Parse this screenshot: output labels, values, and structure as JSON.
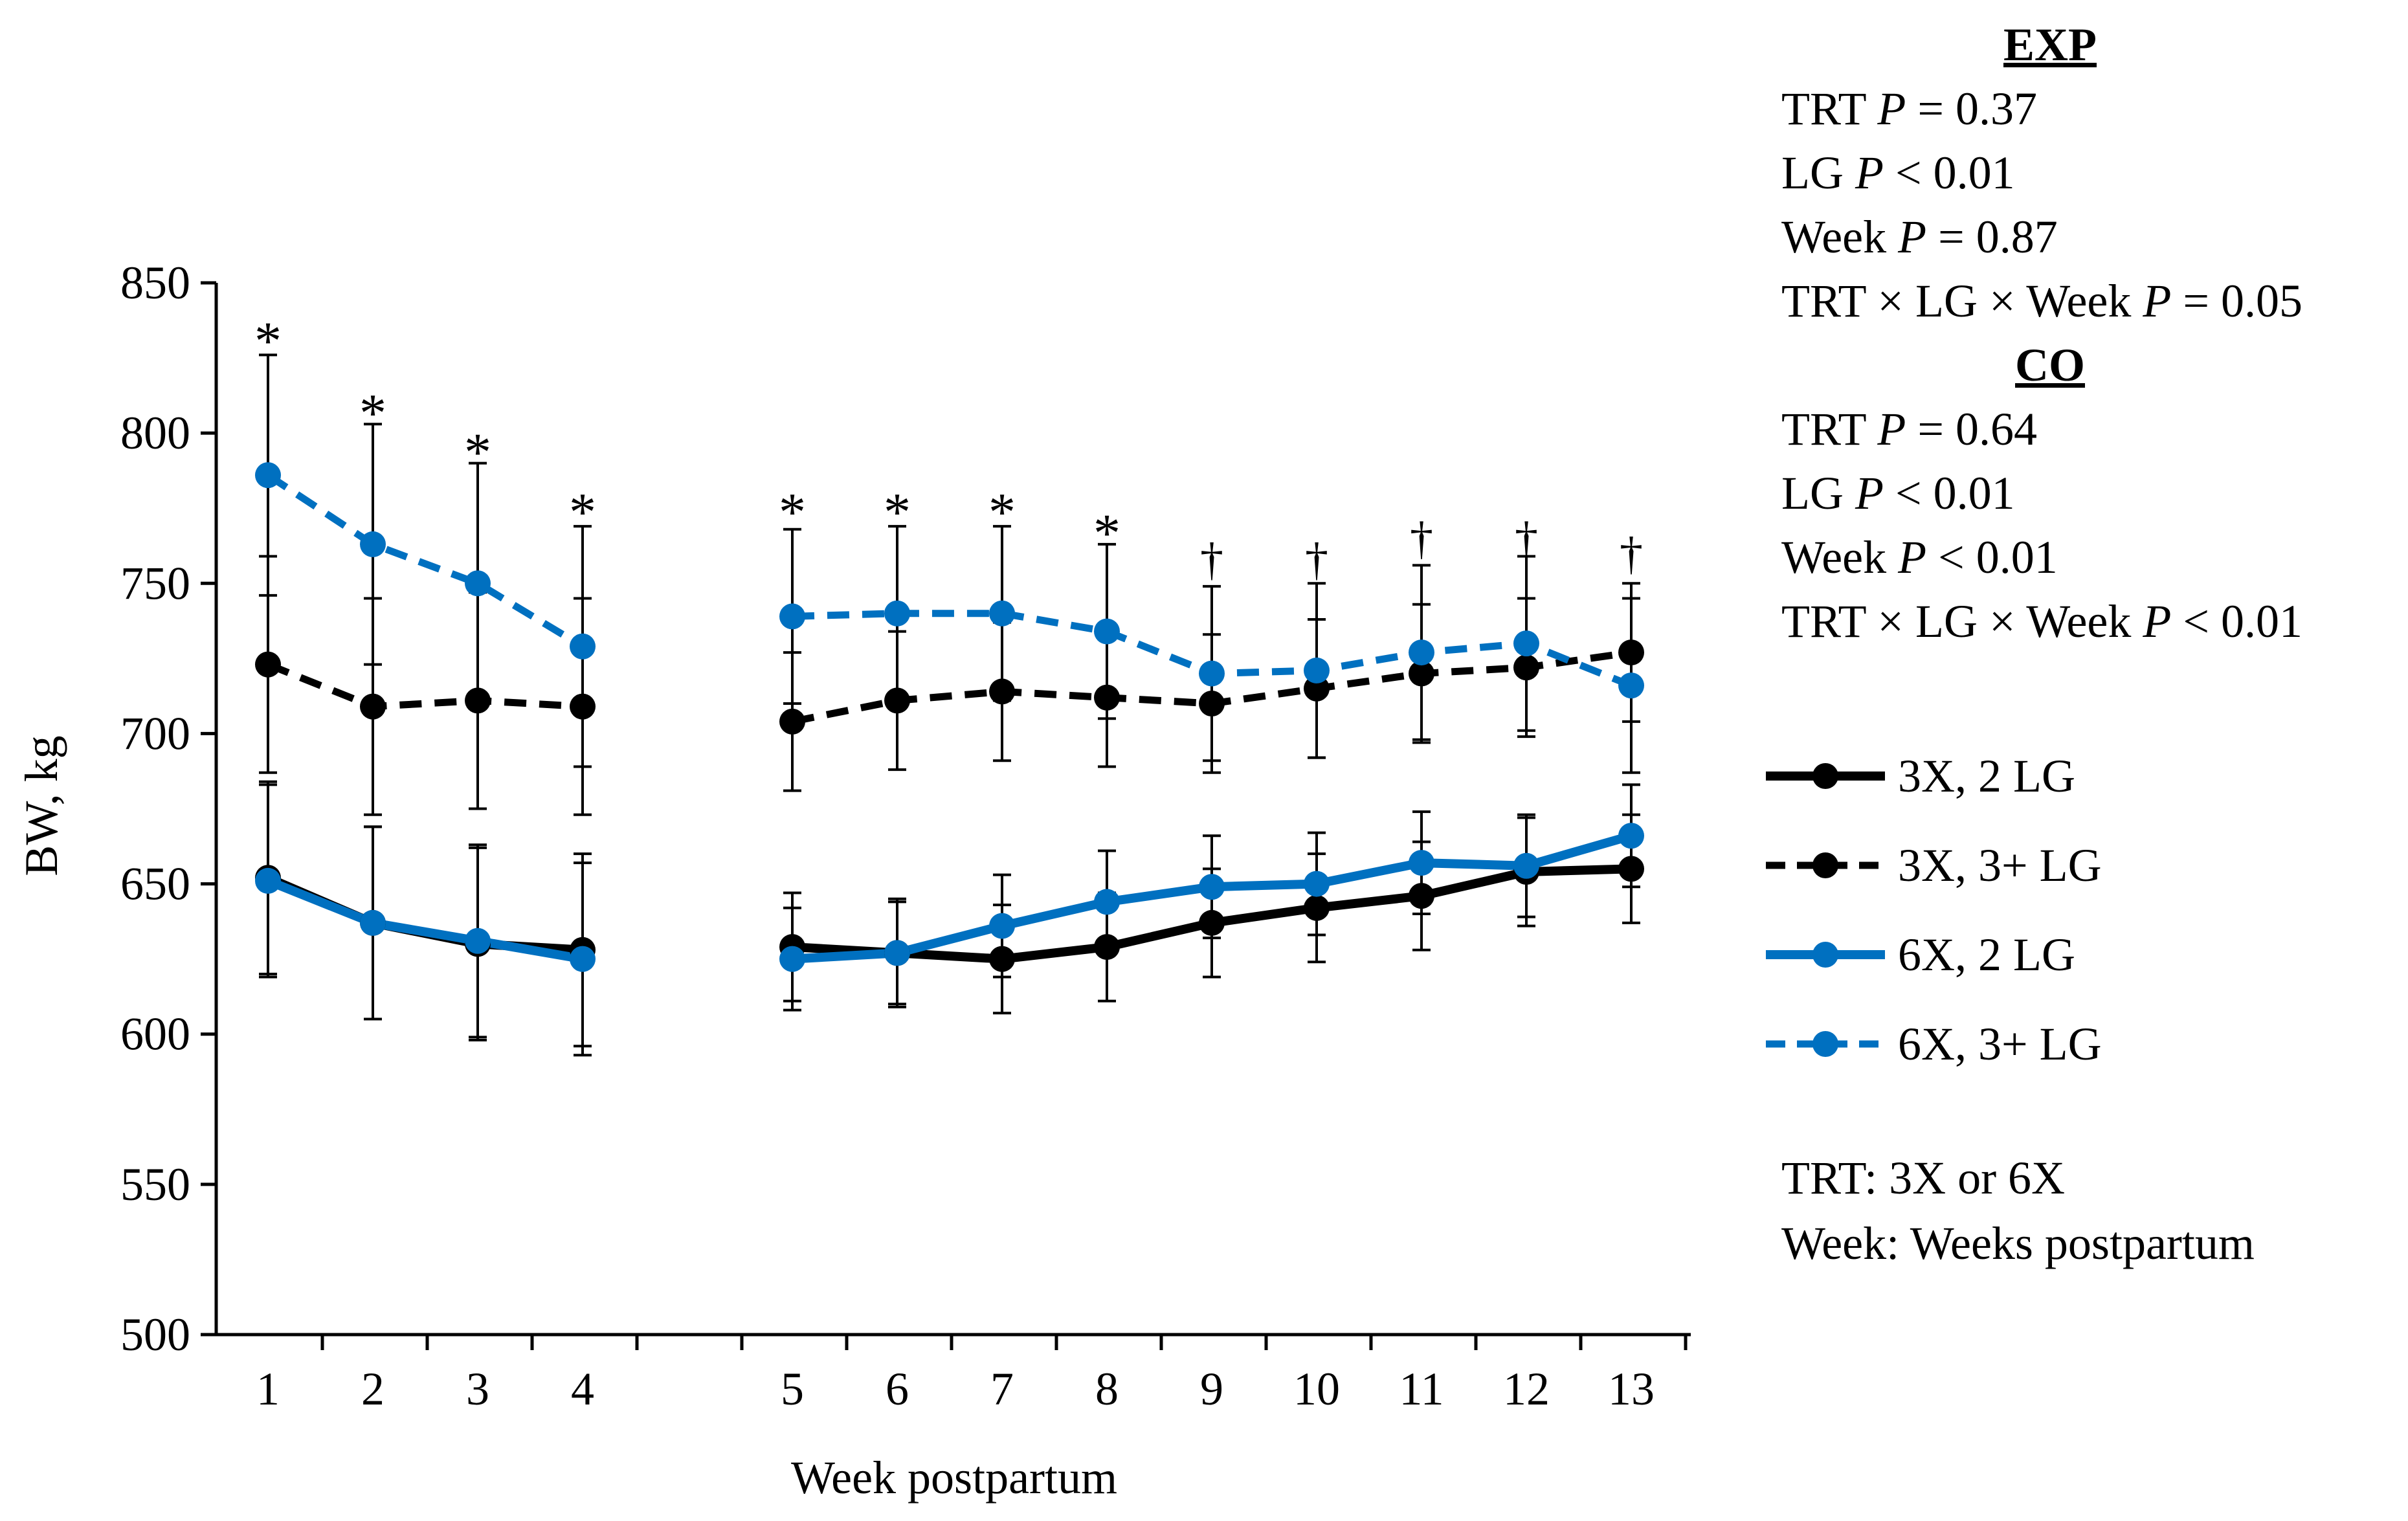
{
  "chart_data": {
    "type": "line",
    "xlabel": "Week postpartum",
    "ylabel": "BW, kg",
    "ylim": [
      500,
      850
    ],
    "yticks": [
      500,
      550,
      600,
      650,
      700,
      750,
      800,
      850
    ],
    "categories": [
      "1",
      "2",
      "3",
      "4",
      "",
      "5",
      "6",
      "7",
      "8",
      "9",
      "10",
      "11",
      "12",
      "13"
    ],
    "series": [
      {
        "name": "3X, 2 LG",
        "color": "#000000",
        "dashed": false,
        "values": [
          652,
          637,
          630,
          628,
          null,
          629,
          627,
          625,
          629,
          637,
          642,
          646,
          654,
          655
        ],
        "errors": [
          32,
          32,
          32,
          32,
          null,
          18,
          18,
          18,
          18,
          18,
          18,
          18,
          18,
          18
        ]
      },
      {
        "name": "3X, 3+ LG",
        "color": "#000000",
        "dashed": true,
        "values": [
          723,
          709,
          711,
          709,
          null,
          704,
          711,
          714,
          712,
          710,
          715,
          720,
          722,
          727
        ],
        "errors": [
          36,
          36,
          36,
          36,
          null,
          23,
          23,
          23,
          23,
          23,
          23,
          23,
          23,
          23
        ]
      },
      {
        "name": "6X, 2 LG",
        "color": "#0070C0",
        "dashed": false,
        "values": [
          651,
          637,
          631,
          625,
          null,
          625,
          627,
          636,
          644,
          649,
          650,
          657,
          656,
          666
        ],
        "errors": [
          32,
          32,
          32,
          32,
          null,
          17,
          17,
          17,
          17,
          17,
          17,
          17,
          17,
          17
        ]
      },
      {
        "name": "6X, 3+ LG",
        "color": "#0070C0",
        "dashed": true,
        "values": [
          786,
          763,
          750,
          729,
          null,
          739,
          740,
          740,
          734,
          720,
          721,
          727,
          730,
          716
        ],
        "errors": [
          40,
          40,
          40,
          40,
          null,
          29,
          29,
          29,
          29,
          29,
          29,
          29,
          29,
          29
        ]
      }
    ],
    "annotations": {
      "marks": [
        "*",
        "*",
        "*",
        "*",
        null,
        "*",
        "*",
        "*",
        "*",
        "†",
        "†",
        "†",
        "†",
        "†"
      ],
      "values": [
        832,
        808,
        795,
        775,
        null,
        775,
        775,
        775,
        768,
        755,
        755,
        762,
        762,
        757
      ]
    }
  },
  "stats": {
    "exp": {
      "header": "EXP",
      "rows": [
        {
          "pre": "TRT ",
          "p": "P",
          "post": " = 0.37"
        },
        {
          "pre": "LG ",
          "p": "P",
          "post": " < 0.01"
        },
        {
          "pre": "Week ",
          "p": "P",
          "post": " = 0.87"
        },
        {
          "pre": "TRT × LG × Week ",
          "p": "P",
          "post": " = 0.05"
        }
      ]
    },
    "co": {
      "header": "CO",
      "rows": [
        {
          "pre": "TRT ",
          "p": "P",
          "post": " = 0.64"
        },
        {
          "pre": "LG ",
          "p": "P",
          "post": " < 0.01"
        },
        {
          "pre": "Week ",
          "p": "P",
          "post": " < 0.01"
        },
        {
          "pre": "TRT × LG × Week ",
          "p": "P",
          "post": " < 0.01"
        }
      ]
    }
  },
  "notes": {
    "trt": "TRT: 3X or 6X",
    "week": "Week: Weeks postpartum"
  }
}
